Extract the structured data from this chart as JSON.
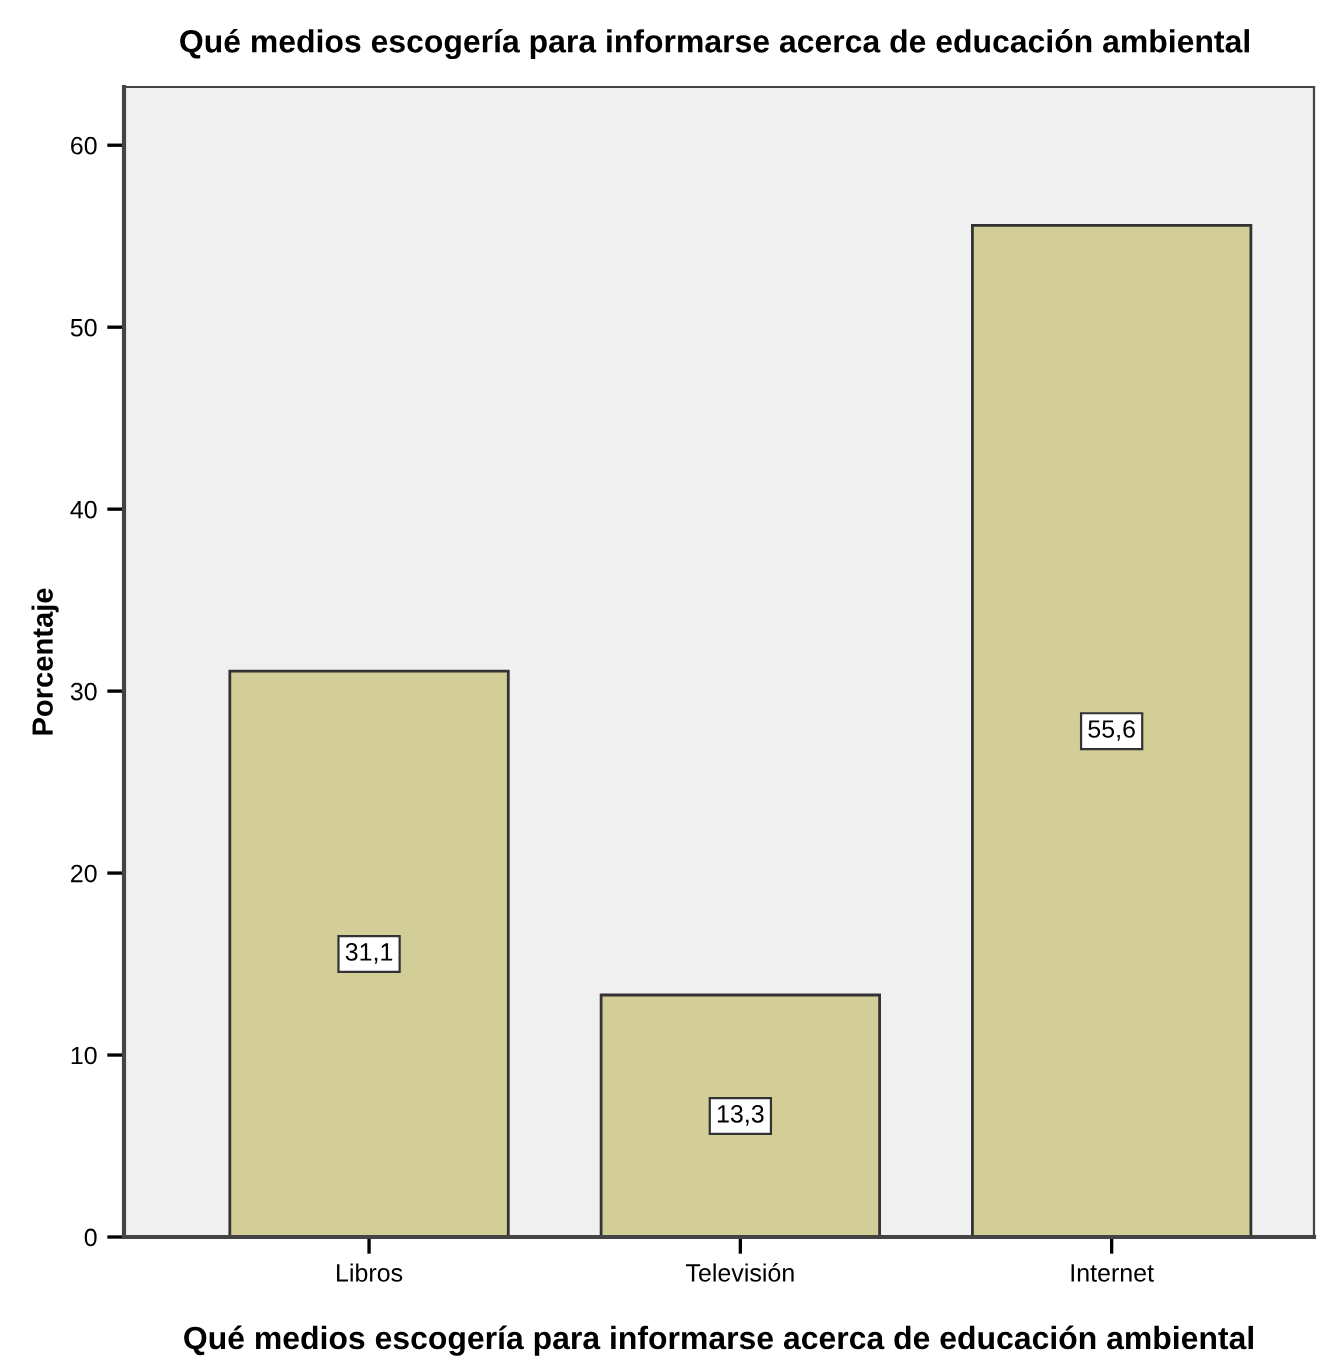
{
  "chart_data": {
    "type": "bar",
    "title": "Qué medios escogería para informarse acerca de educación ambiental",
    "xlabel": "Qué medios escogería para informarse acerca de educación ambiental",
    "ylabel": "Porcentaje",
    "categories": [
      "Libros",
      "Televisión",
      "Internet"
    ],
    "values": [
      31.1,
      13.3,
      55.6
    ],
    "value_labels": [
      "31,1",
      "13,3",
      "55,6"
    ],
    "color": "#d3ce97",
    "ylim": [
      0,
      63.2
    ],
    "yticks": [
      0,
      10,
      20,
      30,
      40,
      50,
      60
    ],
    "grid": false,
    "legend": false
  }
}
